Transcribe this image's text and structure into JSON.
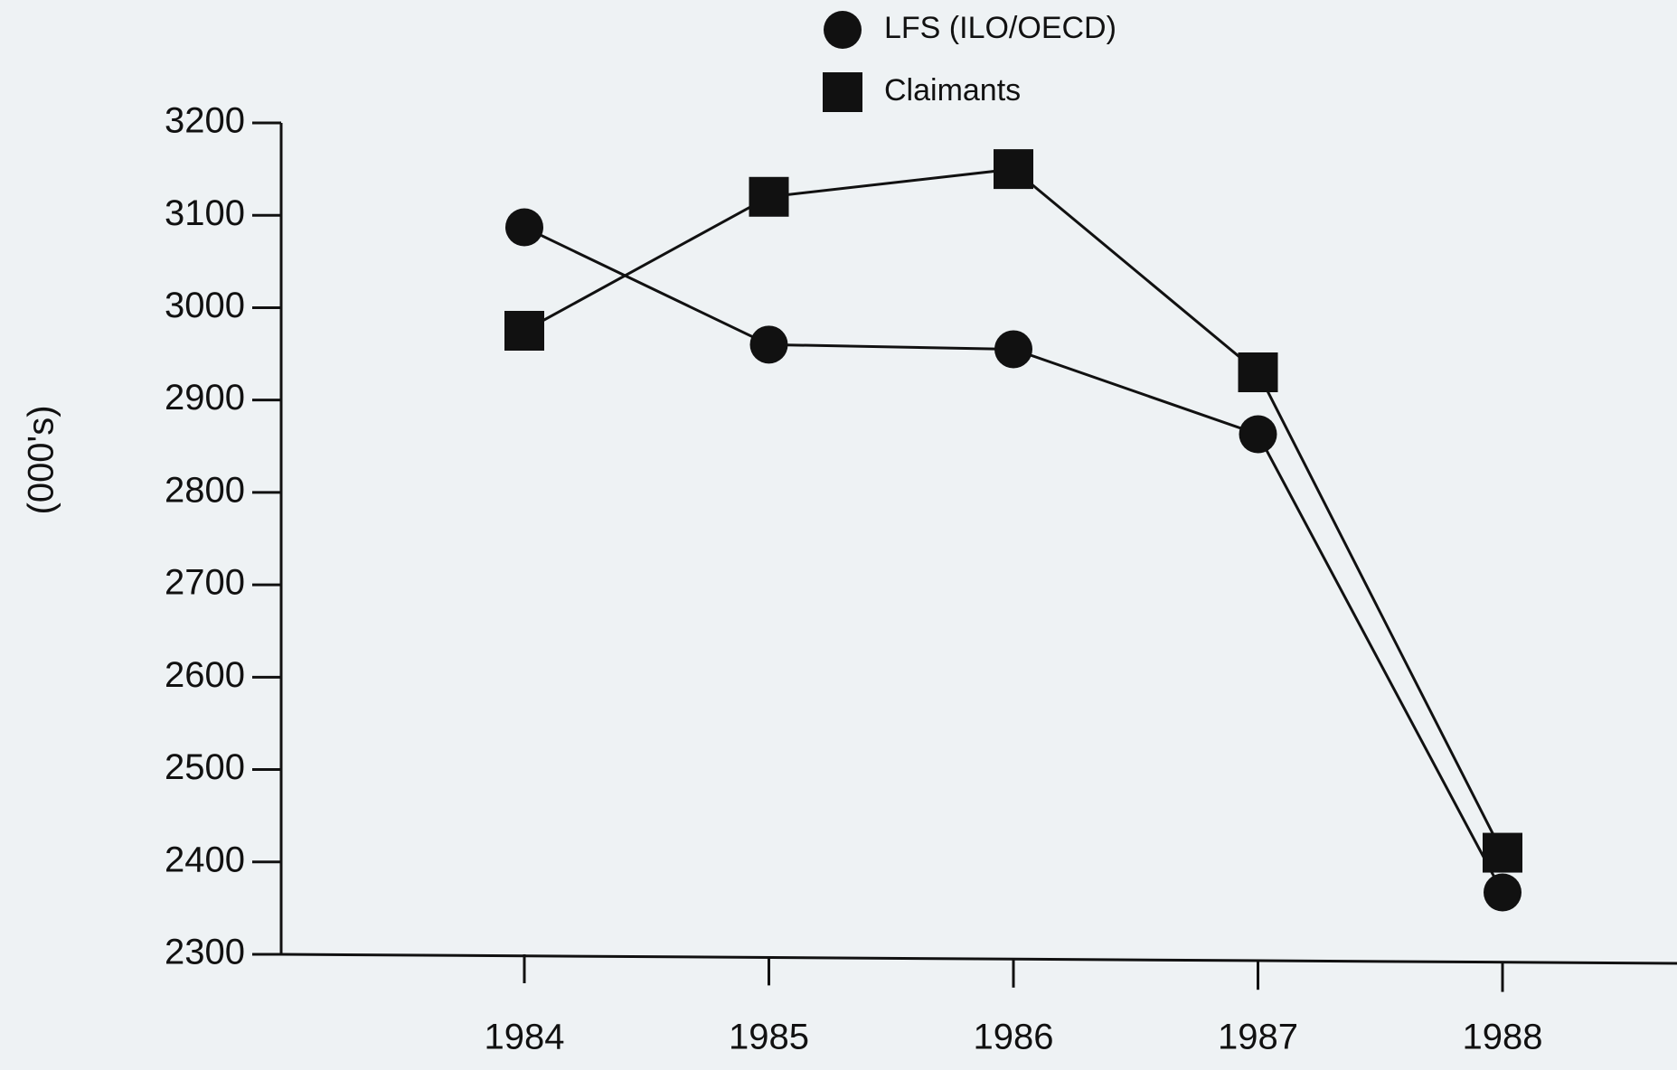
{
  "chart_data": {
    "type": "line",
    "y_label": "(000's)",
    "categories": [
      "1984",
      "1985",
      "1986",
      "1987",
      "1988"
    ],
    "series": [
      {
        "name": "LFS (ILO/OECD)",
        "color": "#111111",
        "marker": "circle",
        "values": [
          3087,
          2960,
          2955,
          2863,
          2367
        ]
      },
      {
        "name": "Claimants",
        "color": "#111111",
        "marker": "square",
        "values": [
          2975,
          3120,
          3150,
          2930,
          2410
        ]
      }
    ],
    "ylim": [
      2300,
      3200
    ],
    "yticks": [
      2300,
      2400,
      2500,
      2600,
      2700,
      2800,
      2900,
      3000,
      3100,
      3200
    ],
    "grid": false,
    "legend": "top"
  }
}
